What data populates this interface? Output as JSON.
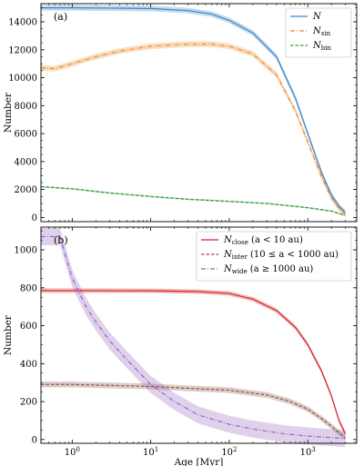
{
  "chart_data": [
    {
      "type": "line",
      "panel_label": "(a)",
      "xlabel": "",
      "ylabel": "Number",
      "xscale": "log",
      "xlim": [
        0.4,
        4200
      ],
      "ylim": [
        -300,
        15300
      ],
      "yticks": [
        0,
        2000,
        4000,
        6000,
        8000,
        10000,
        12000,
        14000
      ],
      "grid": false,
      "legend_position": "top-right",
      "series": [
        {
          "name": "N",
          "legend": {
            "base": "N",
            "sub": ""
          },
          "color": "#3a86c6",
          "dash": "solid",
          "band": 200,
          "points": [
            [
              0.4,
              15000
            ],
            [
              1,
              15000
            ],
            [
              3,
              14980
            ],
            [
              10,
              14950
            ],
            [
              30,
              14800
            ],
            [
              60,
              14550
            ],
            [
              100,
              14100
            ],
            [
              200,
              13200
            ],
            [
              400,
              11500
            ],
            [
              700,
              8500
            ],
            [
              1000,
              6000
            ],
            [
              1500,
              3200
            ],
            [
              2000,
              1600
            ],
            [
              2500,
              800
            ],
            [
              3000,
              350
            ]
          ]
        },
        {
          "name": "N_sin",
          "legend": {
            "base": "N",
            "sub": "sin"
          },
          "color": "#f08a2d",
          "dash": "dashdot",
          "band": 200,
          "points": [
            [
              0.4,
              10700
            ],
            [
              0.6,
              10650
            ],
            [
              1,
              11000
            ],
            [
              2,
              11500
            ],
            [
              4,
              11900
            ],
            [
              10,
              12250
            ],
            [
              30,
              12400
            ],
            [
              60,
              12400
            ],
            [
              100,
              12250
            ],
            [
              200,
              11700
            ],
            [
              400,
              10200
            ],
            [
              700,
              7600
            ],
            [
              1000,
              5400
            ],
            [
              1500,
              2900
            ],
            [
              2000,
              1400
            ],
            [
              2500,
              650
            ],
            [
              3000,
              250
            ]
          ]
        },
        {
          "name": "N_bin",
          "legend": {
            "base": "N",
            "sub": "bin"
          },
          "color": "#2e9a3c",
          "dash": "dashed",
          "band": 60,
          "points": [
            [
              0.4,
              2200
            ],
            [
              1,
              2050
            ],
            [
              3,
              1750
            ],
            [
              10,
              1500
            ],
            [
              30,
              1300
            ],
            [
              100,
              1150
            ],
            [
              300,
              1000
            ],
            [
              1000,
              700
            ],
            [
              2000,
              450
            ],
            [
              3000,
              150
            ]
          ]
        }
      ]
    },
    {
      "type": "line",
      "panel_label": "(b)",
      "xlabel": "Age [Myr]",
      "ylabel": "Number",
      "xscale": "log",
      "xlim": [
        0.4,
        4200
      ],
      "ylim": [
        -20,
        1120
      ],
      "yticks": [
        0,
        200,
        400,
        600,
        800,
        1000
      ],
      "xticks": [
        1,
        10,
        100,
        1000
      ],
      "xtick_labels": [
        "10^0",
        "10^1",
        "10^2",
        "10^3"
      ],
      "grid": false,
      "legend_position": "top-right",
      "series": [
        {
          "name": "N_close (a < 10 au)",
          "legend": {
            "base": "N",
            "sub": "close",
            "suffix": " (a < 10 au)"
          },
          "color": "#d8222a",
          "dash": "solid",
          "band": 12,
          "points": [
            [
              0.4,
              785
            ],
            [
              1,
              785
            ],
            [
              10,
              784
            ],
            [
              40,
              780
            ],
            [
              100,
              770
            ],
            [
              200,
              740
            ],
            [
              400,
              680
            ],
            [
              700,
              590
            ],
            [
              1000,
              500
            ],
            [
              1500,
              360
            ],
            [
              2000,
              230
            ],
            [
              2500,
              100
            ],
            [
              3000,
              30
            ]
          ]
        },
        {
          "name": "N_inter (10 ≤ a < 1000 au)",
          "legend": {
            "base": "N",
            "sub": "inter",
            "suffix": " (10 ≤ a < 1000 au)"
          },
          "color": "#8c564b",
          "dash": "dashed",
          "band": 15,
          "points": [
            [
              0.4,
              290
            ],
            [
              1,
              290
            ],
            [
              3,
              285
            ],
            [
              10,
              280
            ],
            [
              30,
              270
            ],
            [
              100,
              260
            ],
            [
              300,
              235
            ],
            [
              600,
              200
            ],
            [
              1000,
              160
            ],
            [
              1500,
              110
            ],
            [
              2000,
              70
            ],
            [
              2500,
              35
            ],
            [
              3000,
              10
            ]
          ]
        },
        {
          "name": "N_wide (a ≥ 1000 au)",
          "legend": {
            "base": "N",
            "sub": "wide",
            "suffix": " (a ≥ 1000 au)"
          },
          "color": "#9467bd",
          "dash": "dashdot",
          "band": 45,
          "points": [
            [
              0.4,
              1070
            ],
            [
              0.7,
              1070
            ],
            [
              1,
              850
            ],
            [
              1.5,
              700
            ],
            [
              2,
              620
            ],
            [
              3,
              520
            ],
            [
              5,
              420
            ],
            [
              10,
              290
            ],
            [
              20,
              200
            ],
            [
              40,
              130
            ],
            [
              100,
              80
            ],
            [
              200,
              55
            ],
            [
              500,
              30
            ],
            [
              1000,
              18
            ],
            [
              2000,
              10
            ],
            [
              3000,
              5
            ]
          ]
        }
      ]
    }
  ]
}
